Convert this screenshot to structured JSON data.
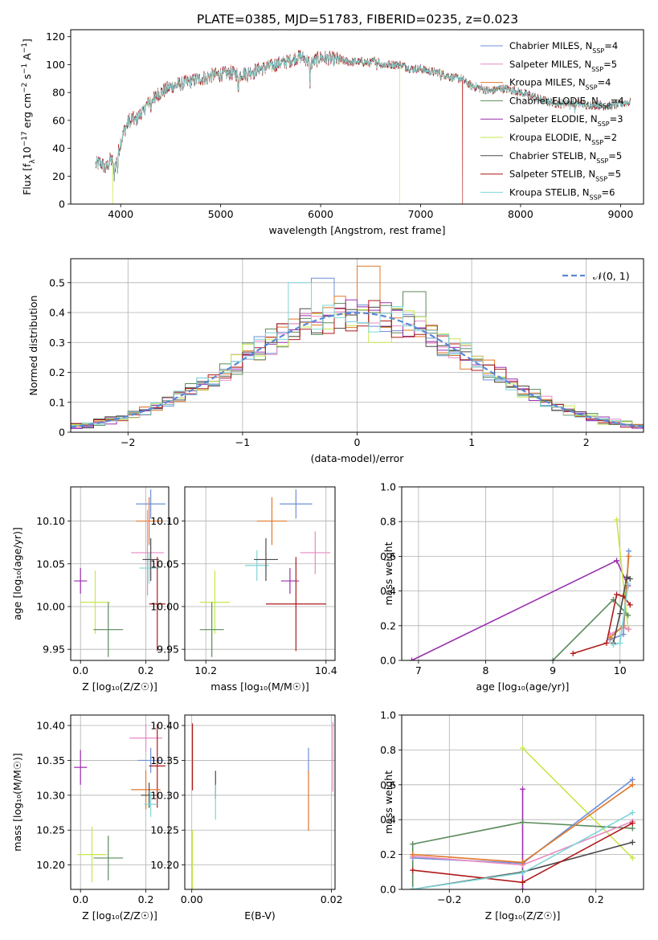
{
  "figure": {
    "title": "PLATE=0385, MJD=51783, FIBERID=0235, z=0.023"
  },
  "series": [
    {
      "name": "Chabrier MILES",
      "lib": "MILES",
      "imf": "Chabrier",
      "nssp": "4",
      "color": "#6f8fd8"
    },
    {
      "name": "Salpeter MILES",
      "lib": "MILES",
      "imf": "Salpeter",
      "nssp": "5",
      "color": "#e889c4"
    },
    {
      "name": "Kroupa MILES",
      "lib": "MILES",
      "imf": "Kroupa",
      "nssp": "4",
      "color": "#e0782a"
    },
    {
      "name": "Chabrier ELODIE",
      "lib": "ELODIE",
      "imf": "Chabrier",
      "nssp": "4",
      "color": "#5b8a5b"
    },
    {
      "name": "Salpeter ELODIE",
      "lib": "ELODIE",
      "imf": "Salpeter",
      "nssp": "3",
      "color": "#9b2fae"
    },
    {
      "name": "Kroupa ELODIE",
      "lib": "ELODIE",
      "imf": "Kroupa",
      "nssp": "2",
      "color": "#c6e84a"
    },
    {
      "name": "Chabrier STELIB",
      "lib": "STELIB",
      "imf": "Chabrier",
      "nssp": "5",
      "color": "#4a4a4a"
    },
    {
      "name": "Salpeter STELIB",
      "lib": "STELIB",
      "imf": "Salpeter",
      "nssp": "5",
      "color": "#b01a1a"
    },
    {
      "name": "Kroupa STELIB",
      "lib": "STELIB",
      "imf": "Kroupa",
      "nssp": "6",
      "color": "#7fd6d6"
    }
  ],
  "chart_data": [
    {
      "id": "spectrum",
      "type": "line",
      "xlabel": "wavelength [Angstrom, rest frame]",
      "ylabel_parts": [
        "Flux [f",
        "λ",
        "10",
        "−17",
        " erg cm",
        "−2",
        " s",
        "−1",
        " A",
        "−1",
        "]"
      ],
      "xlim": [
        3500,
        9230
      ],
      "ylim": [
        0,
        125
      ],
      "xticks": [
        4000,
        5000,
        6000,
        7000,
        8000,
        9000
      ],
      "yticks": [
        0,
        20,
        40,
        60,
        80,
        100,
        120
      ],
      "grid": false,
      "legend": "right",
      "envelope": {
        "x": [
          3750,
          3800,
          3850,
          3900,
          3950,
          4000,
          4050,
          4100,
          4150,
          4200,
          4300,
          4400,
          4500,
          4600,
          4700,
          4800,
          4900,
          5000,
          5100,
          5200,
          5300,
          5400,
          5500,
          5600,
          5700,
          5800,
          5850,
          5900,
          6000,
          6100,
          6200,
          6300,
          6400,
          6500,
          6563,
          6600,
          6700,
          6800,
          6900,
          7000,
          7100,
          7200,
          7300,
          7400,
          7500,
          7600,
          7700,
          7800,
          7900,
          8000,
          8100,
          8200,
          8300,
          8400,
          8500,
          8600,
          8700,
          8800,
          8900,
          9000,
          9100
        ],
        "y": [
          28,
          30,
          25,
          32,
          28,
          45,
          55,
          62,
          60,
          65,
          75,
          80,
          84,
          86,
          88,
          90,
          92,
          93,
          94,
          93,
          95,
          97,
          99,
          101,
          103,
          106,
          104,
          101,
          105,
          104,
          103,
          102,
          102,
          101,
          104,
          100,
          100,
          100,
          97,
          97,
          95,
          94,
          91,
          90,
          85,
          83,
          81,
          83,
          82,
          80,
          78,
          75,
          73,
          72,
          73,
          72,
          71,
          71,
          70,
          72,
          73
        ]
      },
      "absorption_lines": [
        {
          "x": 3934,
          "depth": 14
        },
        {
          "x": 3969,
          "depth": 12
        },
        {
          "x": 4101,
          "depth": 6
        },
        {
          "x": 4227,
          "depth": 4
        },
        {
          "x": 4304,
          "depth": 8
        },
        {
          "x": 4340,
          "depth": 5
        },
        {
          "x": 4861,
          "depth": 5
        },
        {
          "x": 5175,
          "depth": 14
        },
        {
          "x": 5270,
          "depth": 4
        },
        {
          "x": 5335,
          "depth": 3
        },
        {
          "x": 5893,
          "depth": 15
        },
        {
          "x": 6563,
          "depth": 5
        },
        {
          "x": 7200,
          "depth": 3
        },
        {
          "x": 8498,
          "depth": 4
        },
        {
          "x": 8542,
          "depth": 6
        },
        {
          "x": 8662,
          "depth": 5
        }
      ],
      "dropouts": [
        {
          "series": "Kroupa ELODIE",
          "x": 3920
        },
        {
          "series": "Kroupa ELODIE",
          "x": 6790
        },
        {
          "series": "Salpeter STELIB",
          "x": 7420
        }
      ]
    },
    {
      "id": "residuals",
      "type": "step-histogram",
      "xlabel": "(data-model)/error",
      "ylabel": "Normed distribution",
      "xlim": [
        -2.5,
        2.5
      ],
      "ylim": [
        0,
        0.58
      ],
      "xticks": [
        -2,
        -1,
        0,
        1,
        2
      ],
      "yticks": [
        0.0,
        0.1,
        0.2,
        0.3,
        0.4,
        0.5
      ],
      "xtick_labels": [
        "−2",
        "−1",
        "0",
        "1",
        "2"
      ],
      "grid": true,
      "legend": "top-right",
      "reference_label": "𝒩(0, 1)",
      "reference_color": "#5b87d6",
      "bin_width": 0.1,
      "outliers": [
        {
          "series": "Chabrier MILES",
          "x": -0.3,
          "y": 0.515
        },
        {
          "series": "Kroupa MILES",
          "x": 0.1,
          "y": 0.555
        },
        {
          "series": "Kroupa STELIB",
          "x": -0.5,
          "y": 0.5
        },
        {
          "series": "Chabrier ELODIE",
          "x": 0.5,
          "y": 0.47
        },
        {
          "series": "Kroupa ELODIE",
          "x": 0.2,
          "y": 0.3
        }
      ]
    },
    {
      "id": "age-vs-Z",
      "type": "errorbar",
      "xlabel": "Z [log₁₀(Z/Z☉)]",
      "ylabel": "age  [log₁₀(age/yr)]",
      "xlim": [
        -0.03,
        0.27
      ],
      "ylim": [
        9.937,
        10.14
      ],
      "xticks": [
        0.0,
        0.2
      ],
      "yticks": [
        9.95,
        10.0,
        10.05,
        10.1
      ],
      "xtick_labels": [
        "0.0",
        "0.2"
      ],
      "ytick_labels": [
        "9.95",
        "10.00",
        "10.05",
        "10.10"
      ],
      "grid": true,
      "points": [
        {
          "series": "Chabrier MILES",
          "x": 0.215,
          "xerr": 0.045,
          "y": 10.12,
          "yerr": 0.017
        },
        {
          "series": "Kroupa MILES",
          "x": 0.21,
          "xerr": 0.04,
          "y": 10.1,
          "yerr": 0.028
        },
        {
          "series": "Salpeter MILES",
          "x": 0.205,
          "xerr": 0.05,
          "y": 10.063,
          "yerr": 0.05
        },
        {
          "series": "Kroupa STELIB",
          "x": 0.21,
          "xerr": 0.03,
          "y": 10.045,
          "yerr": 0.018
        },
        {
          "series": "Chabrier STELIB",
          "x": 0.215,
          "xerr": 0.025,
          "y": 10.055,
          "yerr": 0.025
        },
        {
          "series": "Salpeter ELODIE",
          "x": 0.0,
          "xerr": 0.02,
          "y": 10.03,
          "yerr": 0.015
        },
        {
          "series": "Kroupa ELODIE",
          "x": 0.045,
          "xerr": 0.045,
          "y": 10.005,
          "yerr": 0.037
        },
        {
          "series": "Chabrier ELODIE",
          "x": 0.085,
          "xerr": 0.045,
          "y": 9.973,
          "yerr": 0.032
        },
        {
          "series": "Salpeter STELIB",
          "x": 0.235,
          "xerr": 0.025,
          "y": 10.003,
          "yerr": 0.055
        }
      ]
    },
    {
      "id": "age-vs-mass",
      "type": "errorbar",
      "xlabel": "mass [log₁₀(M/M☉)]",
      "ylabel": "",
      "xlim": [
        10.165,
        10.415
      ],
      "ylim": [
        9.937,
        10.14
      ],
      "xticks": [
        10.2,
        10.4
      ],
      "yticks": [
        9.95,
        10.0,
        10.05,
        10.1
      ],
      "xtick_labels": [
        "10.2",
        "10.4"
      ],
      "ytick_labels": [
        "9.95",
        "10.00",
        "10.05",
        "10.10"
      ],
      "grid": true,
      "points": [
        {
          "series": "Chabrier MILES",
          "x": 10.35,
          "xerr": 0.027,
          "y": 10.12,
          "yerr": 0.017
        },
        {
          "series": "Kroupa MILES",
          "x": 10.31,
          "xerr": 0.025,
          "y": 10.1,
          "yerr": 0.028
        },
        {
          "series": "Salpeter MILES",
          "x": 10.382,
          "xerr": 0.025,
          "y": 10.063,
          "yerr": 0.025
        },
        {
          "series": "Kroupa STELIB",
          "x": 10.285,
          "xerr": 0.02,
          "y": 10.048,
          "yerr": 0.018
        },
        {
          "series": "Chabrier STELIB",
          "x": 10.3,
          "xerr": 0.02,
          "y": 10.055,
          "yerr": 0.025
        },
        {
          "series": "Salpeter ELODIE",
          "x": 10.34,
          "xerr": 0.015,
          "y": 10.03,
          "yerr": 0.015
        },
        {
          "series": "Kroupa ELODIE",
          "x": 10.215,
          "xerr": 0.025,
          "y": 10.005,
          "yerr": 0.037
        },
        {
          "series": "Chabrier ELODIE",
          "x": 10.21,
          "xerr": 0.02,
          "y": 9.973,
          "yerr": 0.032
        },
        {
          "series": "Salpeter STELIB",
          "x": 10.35,
          "xerr": 0.05,
          "y": 10.003,
          "yerr": 0.055
        }
      ]
    },
    {
      "id": "mass-weight-vs-age",
      "type": "line",
      "xlabel": "age  [log₁₀(age/yr)]",
      "ylabel": "mass weight",
      "xlim": [
        6.75,
        10.35
      ],
      "ylim": [
        0,
        1.0
      ],
      "xticks": [
        7,
        8,
        9,
        10
      ],
      "yticks": [
        0.0,
        0.2,
        0.4,
        0.6,
        0.8,
        1.0
      ],
      "xtick_labels": [
        "7",
        "8",
        "9",
        "10"
      ],
      "ytick_labels": [
        "0.0",
        "0.2",
        "0.4",
        "0.6",
        "0.8",
        "1.0"
      ],
      "grid": true,
      "lines": [
        {
          "series": "Salpeter ELODIE",
          "x": [
            6.9,
            9.95,
            10.12
          ],
          "y": [
            0.0,
            0.575,
            0.43
          ]
        },
        {
          "series": "Kroupa ELODIE",
          "x": [
            9.95,
            10.12
          ],
          "y": [
            0.81,
            0.18
          ]
        },
        {
          "series": "Chabrier ELODIE",
          "x": [
            9.0,
            9.9,
            10.12
          ],
          "y": [
            0.0,
            0.35,
            0.26
          ]
        },
        {
          "series": "Chabrier MILES",
          "x": [
            9.85,
            10.05,
            10.13
          ],
          "y": [
            0.12,
            0.15,
            0.63
          ]
        },
        {
          "series": "Salpeter MILES",
          "x": [
            9.85,
            10.05,
            10.13
          ],
          "y": [
            0.15,
            0.19,
            0.18
          ]
        },
        {
          "series": "Kroupa MILES",
          "x": [
            9.85,
            10.05,
            10.13
          ],
          "y": [
            0.13,
            0.2,
            0.6
          ]
        },
        {
          "series": "Chabrier STELIB",
          "x": [
            9.9,
            10.0,
            10.1,
            10.15
          ],
          "y": [
            0.1,
            0.27,
            0.48,
            0.47
          ]
        },
        {
          "series": "Salpeter STELIB",
          "x": [
            9.3,
            9.8,
            9.95,
            10.05,
            10.15
          ],
          "y": [
            0.04,
            0.1,
            0.38,
            0.37,
            0.32
          ]
        },
        {
          "series": "Kroupa STELIB",
          "x": [
            9.9,
            10.0,
            10.12
          ],
          "y": [
            0.09,
            0.1,
            0.44
          ]
        }
      ]
    },
    {
      "id": "mass-vs-Z",
      "type": "errorbar",
      "xlabel": "Z [log₁₀(Z/Z☉)]",
      "ylabel": "mass [log₁₀(M/M☉)]",
      "xlim": [
        -0.03,
        0.27
      ],
      "ylim": [
        10.165,
        10.415
      ],
      "xticks": [
        0.0,
        0.2
      ],
      "yticks": [
        10.2,
        10.25,
        10.3,
        10.35,
        10.4
      ],
      "xtick_labels": [
        "0.0",
        "0.2"
      ],
      "ytick_labels": [
        "10.20",
        "10.25",
        "10.30",
        "10.35",
        "10.40"
      ],
      "grid": true,
      "points": [
        {
          "series": "Chabrier MILES",
          "x": 0.215,
          "xerr": 0.04,
          "y": 10.35,
          "yerr": 0.018
        },
        {
          "series": "Salpeter MILES",
          "x": 0.2,
          "xerr": 0.05,
          "y": 10.382,
          "yerr": 0.02
        },
        {
          "series": "Salpeter STELIB",
          "x": 0.235,
          "xerr": 0.025,
          "y": 10.342,
          "yerr": 0.06
        },
        {
          "series": "Kroupa MILES",
          "x": 0.2,
          "xerr": 0.045,
          "y": 10.308,
          "yerr": 0.028
        },
        {
          "series": "Chabrier STELIB",
          "x": 0.21,
          "xerr": 0.025,
          "y": 10.3,
          "yerr": 0.018
        },
        {
          "series": "Kroupa STELIB",
          "x": 0.215,
          "xerr": 0.02,
          "y": 10.287,
          "yerr": 0.018
        },
        {
          "series": "Salpeter ELODIE",
          "x": 0.0,
          "xerr": 0.02,
          "y": 10.34,
          "yerr": 0.025
        },
        {
          "series": "Kroupa ELODIE",
          "x": 0.035,
          "xerr": 0.045,
          "y": 10.215,
          "yerr": 0.04
        },
        {
          "series": "Chabrier ELODIE",
          "x": 0.085,
          "xerr": 0.045,
          "y": 10.21,
          "yerr": 0.032
        }
      ]
    },
    {
      "id": "mass-vs-ebv",
      "type": "errorbar",
      "xlabel": "E(B-V)",
      "ylabel": "",
      "xlim": [
        -0.001,
        0.0205
      ],
      "ylim": [
        10.165,
        10.415
      ],
      "xticks": [
        0.0,
        0.02
      ],
      "yticks": [
        10.2,
        10.25,
        10.3,
        10.35,
        10.4
      ],
      "xtick_labels": [
        "0.00",
        "0.02"
      ],
      "ytick_labels": [
        "10.20",
        "10.25",
        "10.30",
        "10.35",
        "10.40"
      ],
      "grid": true,
      "points": [
        {
          "series": "Salpeter STELIB",
          "x": 0.0001,
          "xerr": 0,
          "y": 10.355,
          "yerr": 0.048
        },
        {
          "series": "Kroupa ELODIE",
          "x": 0.0001,
          "xerr": 0,
          "y": 10.2,
          "yerr": 0.05
        },
        {
          "series": "Chabrier STELIB",
          "x": 0.0034,
          "xerr": 0,
          "y": 10.315,
          "yerr": 0.02
        },
        {
          "series": "Kroupa STELIB",
          "x": 0.0034,
          "xerr": 0,
          "y": 10.29,
          "yerr": 0.025
        },
        {
          "series": "Chabrier MILES",
          "x": 0.0167,
          "xerr": 0,
          "y": 10.35,
          "yerr": 0.018
        },
        {
          "series": "Kroupa MILES",
          "x": 0.0167,
          "xerr": 0,
          "y": 10.292,
          "yerr": 0.043
        },
        {
          "series": "Salpeter MILES",
          "x": 0.0202,
          "xerr": 0,
          "y": 10.355,
          "yerr": 0.05
        }
      ]
    },
    {
      "id": "mass-weight-vs-Z",
      "type": "line",
      "xlabel": "Z [log₁₀(Z/Z☉)]",
      "ylabel": "mass weight",
      "xlim": [
        -0.33,
        0.33
      ],
      "ylim": [
        0,
        1.0
      ],
      "xticks": [
        -0.2,
        0.0,
        0.2
      ],
      "yticks": [
        0.0,
        0.2,
        0.4,
        0.6,
        0.8,
        1.0
      ],
      "xtick_labels": [
        "−0.2",
        "0.0",
        "0.2"
      ],
      "ytick_labels": [
        "0.0",
        "0.2",
        "0.4",
        "0.6",
        "0.8",
        "1.0"
      ],
      "grid": true,
      "lines": [
        {
          "series": "Kroupa ELODIE",
          "x": [
            0.0,
            0.3
          ],
          "y": [
            0.81,
            0.18
          ]
        },
        {
          "series": "Salpeter ELODIE",
          "x": [
            0.0,
            0.0
          ],
          "y": [
            0.0,
            0.575
          ]
        },
        {
          "series": "Chabrier ELODIE",
          "x": [
            -0.3,
            -0.3,
            0.0,
            0.3
          ],
          "y": [
            0.0,
            0.26,
            0.385,
            0.35
          ]
        },
        {
          "series": "Chabrier MILES",
          "x": [
            -0.3,
            0.0,
            0.3
          ],
          "y": [
            0.18,
            0.15,
            0.63
          ]
        },
        {
          "series": "Salpeter MILES",
          "x": [
            -0.3,
            0.0,
            0.3
          ],
          "y": [
            0.19,
            0.14,
            0.39
          ]
        },
        {
          "series": "Kroupa MILES",
          "x": [
            -0.3,
            0.0,
            0.3
          ],
          "y": [
            0.2,
            0.155,
            0.6
          ]
        },
        {
          "series": "Chabrier STELIB",
          "x": [
            -0.3,
            0.0,
            0.3
          ],
          "y": [
            0.0,
            0.1,
            0.27
          ]
        },
        {
          "series": "Salpeter STELIB",
          "x": [
            -0.3,
            0.0,
            0.3
          ],
          "y": [
            0.11,
            0.04,
            0.38
          ]
        },
        {
          "series": "Kroupa STELIB",
          "x": [
            -0.3,
            0.0,
            0.3
          ],
          "y": [
            0.0,
            0.095,
            0.44
          ]
        }
      ]
    }
  ]
}
